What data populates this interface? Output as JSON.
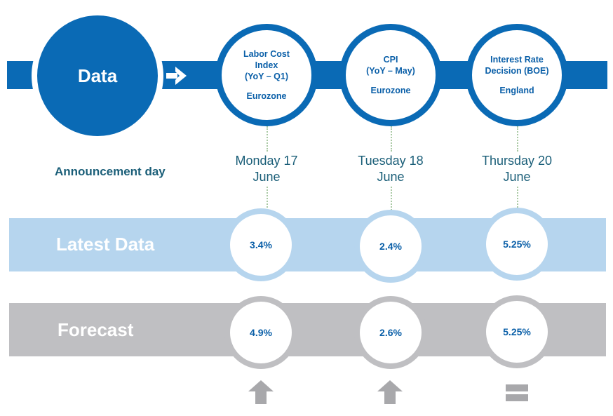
{
  "header": {
    "title": "Data"
  },
  "announcement_label": "Announcement day",
  "events": [
    {
      "name_lines": [
        "Labor Cost",
        "Index",
        "(YoY – Q1)"
      ],
      "region": "Eurozone",
      "date_lines": [
        "Monday 17",
        "June"
      ],
      "latest": "3.4%",
      "forecast": "4.9%",
      "trend": "up-arrow-icon"
    },
    {
      "name_lines": [
        "CPI",
        "(YoY – May)"
      ],
      "region": "Eurozone",
      "date_lines": [
        "Tuesday 18",
        "June"
      ],
      "latest": "2.4%",
      "forecast": "2.6%",
      "trend": "up-arrow-icon"
    },
    {
      "name_lines": [
        "Interest Rate",
        "Decision (BOE)"
      ],
      "region": "England",
      "date_lines": [
        "Thursday 20",
        "June"
      ],
      "latest": "5.25%",
      "forecast": "5.25%",
      "trend": "equal-icon"
    }
  ],
  "rows": {
    "latest_label": "Latest Data",
    "forecast_label": "Forecast"
  },
  "colors": {
    "primary_blue": "#0a6ab5",
    "light_blue": "#b6d5ee",
    "gray": "#bfbfc2",
    "text_teal": "#1a5e78"
  }
}
